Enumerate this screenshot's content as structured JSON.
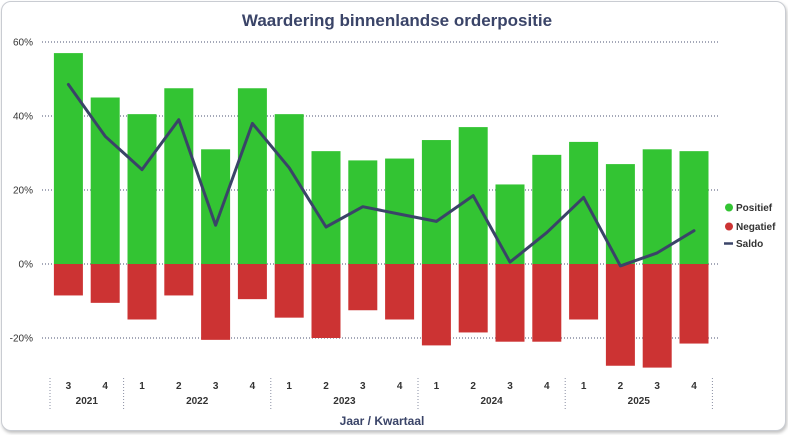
{
  "chart_data": {
    "type": "bar",
    "title": "Waardering binnenlandse orderpositie",
    "xlabel": "Jaar / Kwartaal",
    "ylabel": "",
    "ylim": [
      -30,
      60
    ],
    "yticks": [
      60,
      40,
      20,
      0,
      -20
    ],
    "ytick_labels": [
      "60%",
      "40%",
      "20%",
      "0%",
      "-20%"
    ],
    "categories": [
      "3",
      "4",
      "1",
      "2",
      "3",
      "4",
      "1",
      "2",
      "3",
      "4",
      "1",
      "2",
      "3",
      "4",
      "1",
      "2",
      "3",
      "4"
    ],
    "years": [
      {
        "label": "2021",
        "span": 2
      },
      {
        "label": "2022",
        "span": 4
      },
      {
        "label": "2023",
        "span": 4
      },
      {
        "label": "2024",
        "span": 4
      },
      {
        "label": "2025",
        "span": 4
      }
    ],
    "series": [
      {
        "name": "Positief",
        "kind": "bar",
        "color": "#33c433",
        "values": [
          57,
          45,
          40.5,
          47.5,
          31,
          47.5,
          40.5,
          30.5,
          28,
          28.5,
          33.5,
          37,
          21.5,
          29.5,
          33,
          27,
          31,
          30.5
        ]
      },
      {
        "name": "Negatief",
        "kind": "bar",
        "color": "#cc3333",
        "values": [
          -8.5,
          -10.5,
          -15,
          -8.5,
          -20.5,
          -9.5,
          -14.5,
          -20,
          -12.5,
          -15,
          -22,
          -18.5,
          -21,
          -21,
          -15,
          -27.5,
          -28,
          -21.5
        ]
      },
      {
        "name": "Saldo",
        "kind": "line",
        "color": "#3a4468",
        "values": [
          48.5,
          34.5,
          25.5,
          39,
          10.5,
          38,
          26,
          10,
          15.5,
          13.5,
          11.5,
          18.5,
          0.5,
          8.5,
          18,
          -0.5,
          3,
          9
        ]
      }
    ],
    "legend_position": "right",
    "grid": true
  }
}
